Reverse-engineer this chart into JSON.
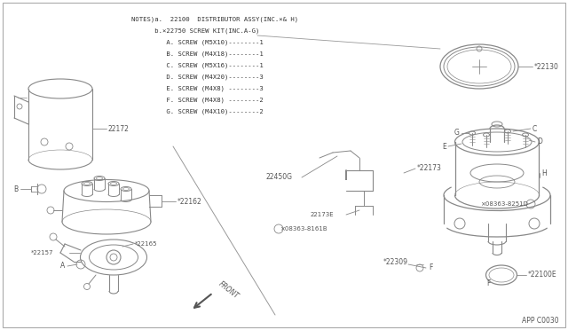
{
  "bg_color": "#ffffff",
  "line_color": "#888888",
  "dark_color": "#555555",
  "text_color": "#333333",
  "notes_lines": [
    "NOTES)a.  22100  DISTRIBUTOR ASSY(INC.×& H)",
    "      b.×22750 SCREW KIT(INC.A-G)",
    "         A. SCREW (M5X10)--------1",
    "         B. SCREW (M4X18)--------1",
    "         C. SCREW (M5X16)--------1",
    "         D. SCREW (M4X20)--------3",
    "         E. SCREW (M4X8) --------3",
    "         F. SCREW (M4X8) --------2",
    "         G. SCREW (M4X10)--------2"
  ],
  "page_ref": "APP C0030"
}
